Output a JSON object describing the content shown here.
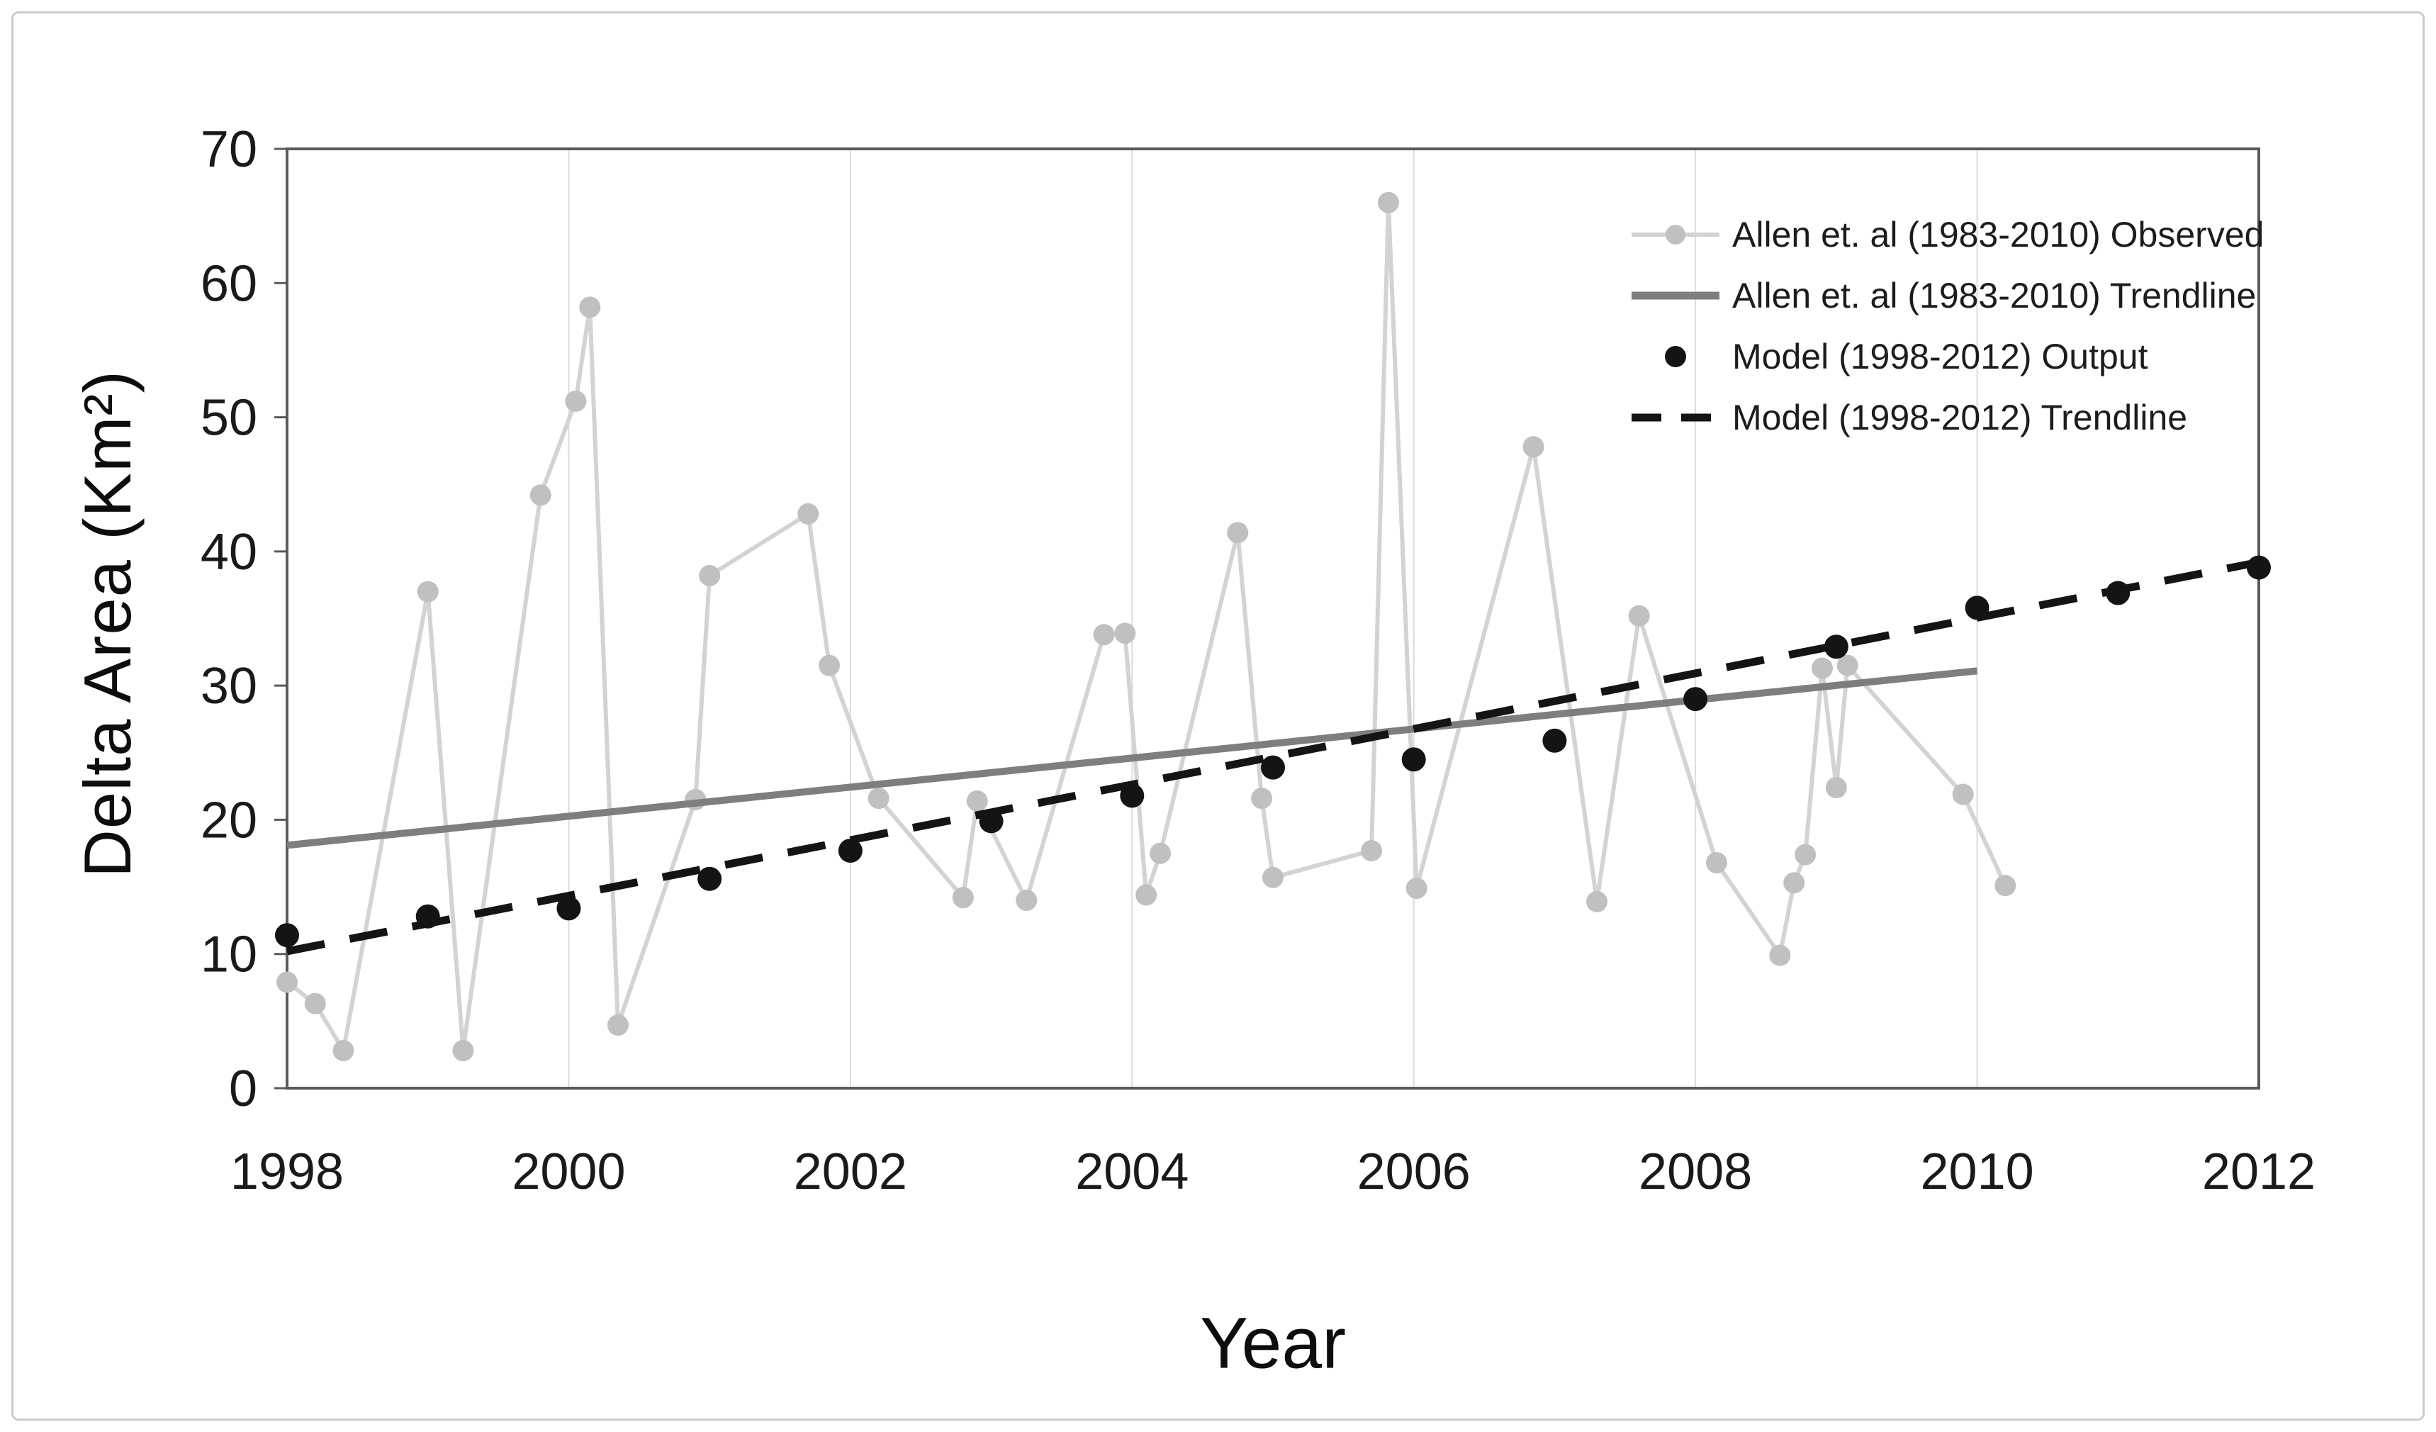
{
  "figure": {
    "legend": [
      {
        "label": "Allen et. al (1983-2010) Observed",
        "type": "line+markers",
        "color": "#d3d3d3",
        "marker_color": "#c0c0c0"
      },
      {
        "label": "Allen et. al (1983-2010) Trendline",
        "type": "line",
        "color": "#7e7e7e"
      },
      {
        "label": "Model (1998-2012) Output",
        "type": "scatter",
        "color": "#141414"
      },
      {
        "label": "Model (1998-2012) Trendline",
        "type": "dashed",
        "color": "#141414"
      }
    ]
  },
  "chart_data": {
    "type": "line",
    "title": "",
    "xlabel": "Year",
    "ylabel": "Delta Area (Km²)",
    "xlim": [
      1998,
      2012
    ],
    "ylim": [
      0,
      70
    ],
    "x_ticks": [
      1998,
      2000,
      2002,
      2004,
      2006,
      2008,
      2010,
      2012
    ],
    "y_ticks": [
      0,
      10,
      20,
      30,
      40,
      50,
      60,
      70
    ],
    "grid": "vertical-only",
    "legend_position": "upper-right",
    "colors": {
      "axis": "#5a5a5a",
      "gridline": "#dcdcdc",
      "tick_text": "#1a1a1a"
    },
    "series": [
      {
        "name": "Allen et. al (1983-2010) Observed",
        "type": "line+markers",
        "color": "#d3d3d3",
        "marker_color": "#c0c0c0",
        "points": [
          [
            1998.0,
            7.9
          ],
          [
            1998.2,
            6.3
          ],
          [
            1998.4,
            2.8
          ],
          [
            1999.0,
            37.0
          ],
          [
            1999.25,
            2.8
          ],
          [
            1999.8,
            44.2
          ],
          [
            2000.05,
            51.2
          ],
          [
            2000.15,
            58.2
          ],
          [
            2000.35,
            4.7
          ],
          [
            2000.9,
            21.5
          ],
          [
            2001.0,
            38.2
          ],
          [
            2001.7,
            42.8
          ],
          [
            2001.85,
            31.5
          ],
          [
            2002.2,
            21.6
          ],
          [
            2002.8,
            14.2
          ],
          [
            2002.9,
            21.4
          ],
          [
            2003.25,
            14.0
          ],
          [
            2003.8,
            33.8
          ],
          [
            2003.95,
            33.9
          ],
          [
            2004.1,
            14.4
          ],
          [
            2004.2,
            17.5
          ],
          [
            2004.75,
            41.4
          ],
          [
            2004.92,
            21.6
          ],
          [
            2005.0,
            15.7
          ],
          [
            2005.7,
            17.7
          ],
          [
            2005.82,
            66.0
          ],
          [
            2006.02,
            14.9
          ],
          [
            2006.85,
            47.8
          ],
          [
            2007.3,
            13.9
          ],
          [
            2007.6,
            35.2
          ],
          [
            2008.15,
            16.8
          ],
          [
            2008.6,
            9.9
          ],
          [
            2008.7,
            15.3
          ],
          [
            2008.78,
            17.4
          ],
          [
            2008.9,
            31.3
          ],
          [
            2009.0,
            22.4
          ],
          [
            2009.08,
            31.5
          ],
          [
            2009.9,
            21.9
          ],
          [
            2010.2,
            15.1
          ]
        ]
      },
      {
        "name": "Allen et. al (1983-2010) Trendline",
        "type": "line",
        "color": "#7e7e7e",
        "points": [
          [
            1998.0,
            18.1
          ],
          [
            2010.0,
            31.1
          ]
        ]
      },
      {
        "name": "Model (1998-2012) Output",
        "type": "scatter",
        "color": "#141414",
        "points": [
          [
            1998,
            11.4
          ],
          [
            1999,
            12.8
          ],
          [
            2000,
            13.4
          ],
          [
            2001,
            15.6
          ],
          [
            2002,
            17.7
          ],
          [
            2003,
            19.9
          ],
          [
            2004,
            21.8
          ],
          [
            2005,
            23.9
          ],
          [
            2006,
            24.5
          ],
          [
            2007,
            25.9
          ],
          [
            2008,
            29.0
          ],
          [
            2009,
            32.9
          ],
          [
            2010,
            35.8
          ],
          [
            2011,
            36.9
          ],
          [
            2012,
            38.8
          ]
        ]
      },
      {
        "name": "Model (1998-2012) Trendline",
        "type": "dashed",
        "color": "#141414",
        "points": [
          [
            1998.0,
            10.2
          ],
          [
            2012.0,
            39.2
          ]
        ]
      }
    ]
  }
}
